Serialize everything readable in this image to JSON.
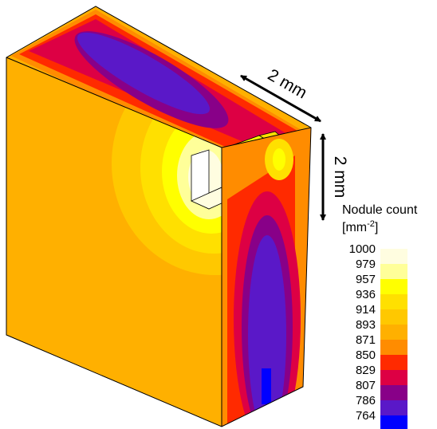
{
  "legend": {
    "title": "Nodule count",
    "unit_base": "[mm",
    "unit_exp": "-2",
    "unit_close": "]",
    "levels": [
      {
        "label": "1000",
        "color": "#fffde0"
      },
      {
        "label": "979",
        "color": "#ffff99"
      },
      {
        "label": "957",
        "color": "#ffff00"
      },
      {
        "label": "936",
        "color": "#ffe000"
      },
      {
        "label": "914",
        "color": "#ffc800"
      },
      {
        "label": "893",
        "color": "#ffb000"
      },
      {
        "label": "871",
        "color": "#ff8c00"
      },
      {
        "label": "850",
        "color": "#ff2a00"
      },
      {
        "label": "829",
        "color": "#dd0044"
      },
      {
        "label": "807",
        "color": "#880088"
      },
      {
        "label": "786",
        "color": "#5a18c8"
      },
      {
        "label": "764",
        "color": "#0000ff"
      }
    ]
  },
  "dimensions": {
    "horizontal": "2 mm",
    "vertical": "2 mm"
  }
}
